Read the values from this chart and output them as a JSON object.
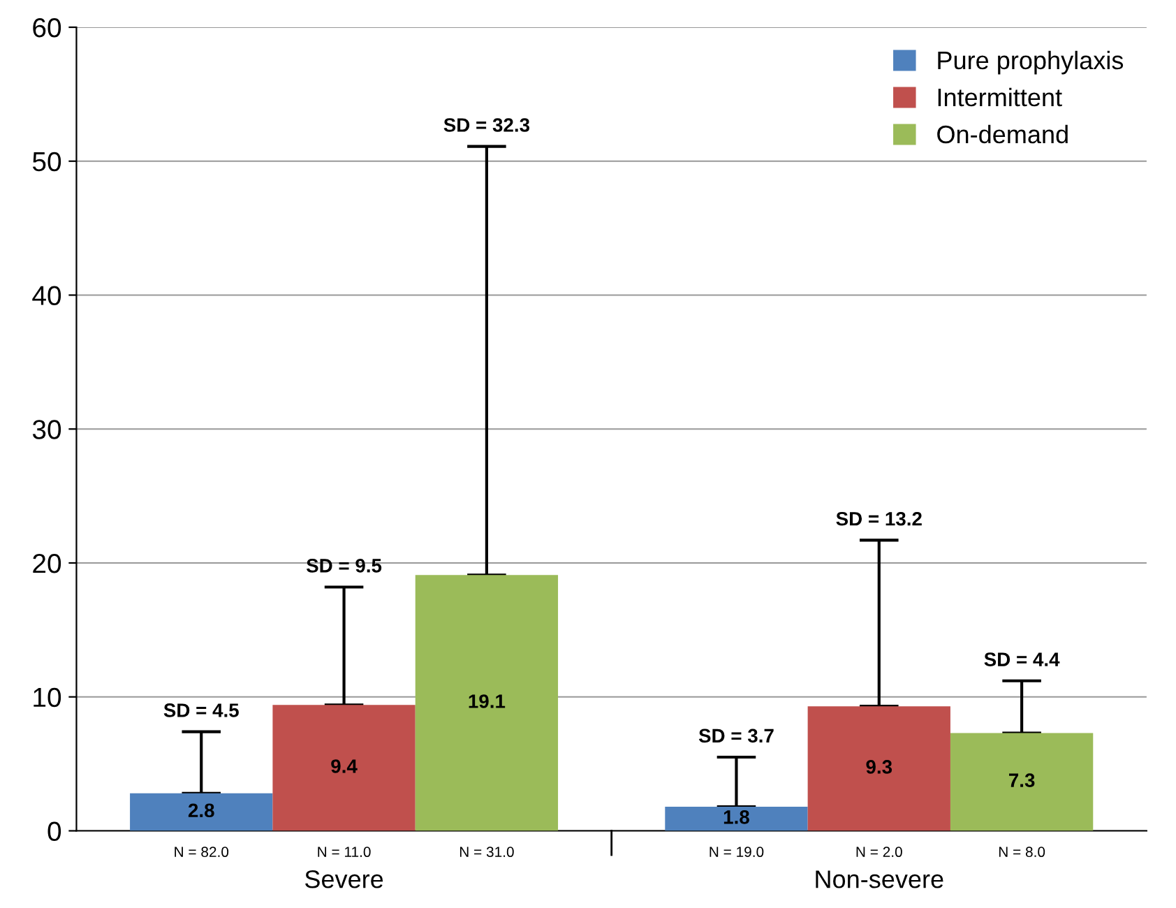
{
  "chart_data": {
    "type": "bar",
    "categories": [
      "Severe",
      "Non-severe"
    ],
    "series": [
      {
        "name": "Pure prophylaxis",
        "color": "#4f81bd",
        "values": [
          2.8,
          1.8
        ],
        "errors": [
          [
            2.8,
            7.4
          ],
          [
            1.8,
            5.5
          ]
        ]
      },
      {
        "name": "Intermittent",
        "color": "#c0504d",
        "values": [
          9.4,
          9.3
        ],
        "errors": [
          [
            9.4,
            18.2
          ],
          [
            9.3,
            21.7
          ]
        ]
      },
      {
        "name": "On-demand",
        "color": "#9bbb59",
        "values": [
          19.1,
          7.3
        ],
        "errors": [
          [
            19.1,
            51.1
          ],
          [
            7.3,
            11.2
          ]
        ]
      }
    ],
    "ylim": [
      0,
      60
    ],
    "yticks": [
      0,
      10,
      20,
      30,
      40,
      50,
      60
    ],
    "grid": "y",
    "legend": "top right",
    "data_labels": true,
    "annotations": [
      "SD = 4.5",
      "SD = 3.7",
      "SD = 9.5",
      "SD = 13.2",
      "SD = 32.3",
      "SD = 4.4",
      "N = 82.0",
      "N = 19.0",
      "N = 11.0",
      "N = 2.0",
      "N = 31.0",
      "N = 8.0"
    ]
  }
}
